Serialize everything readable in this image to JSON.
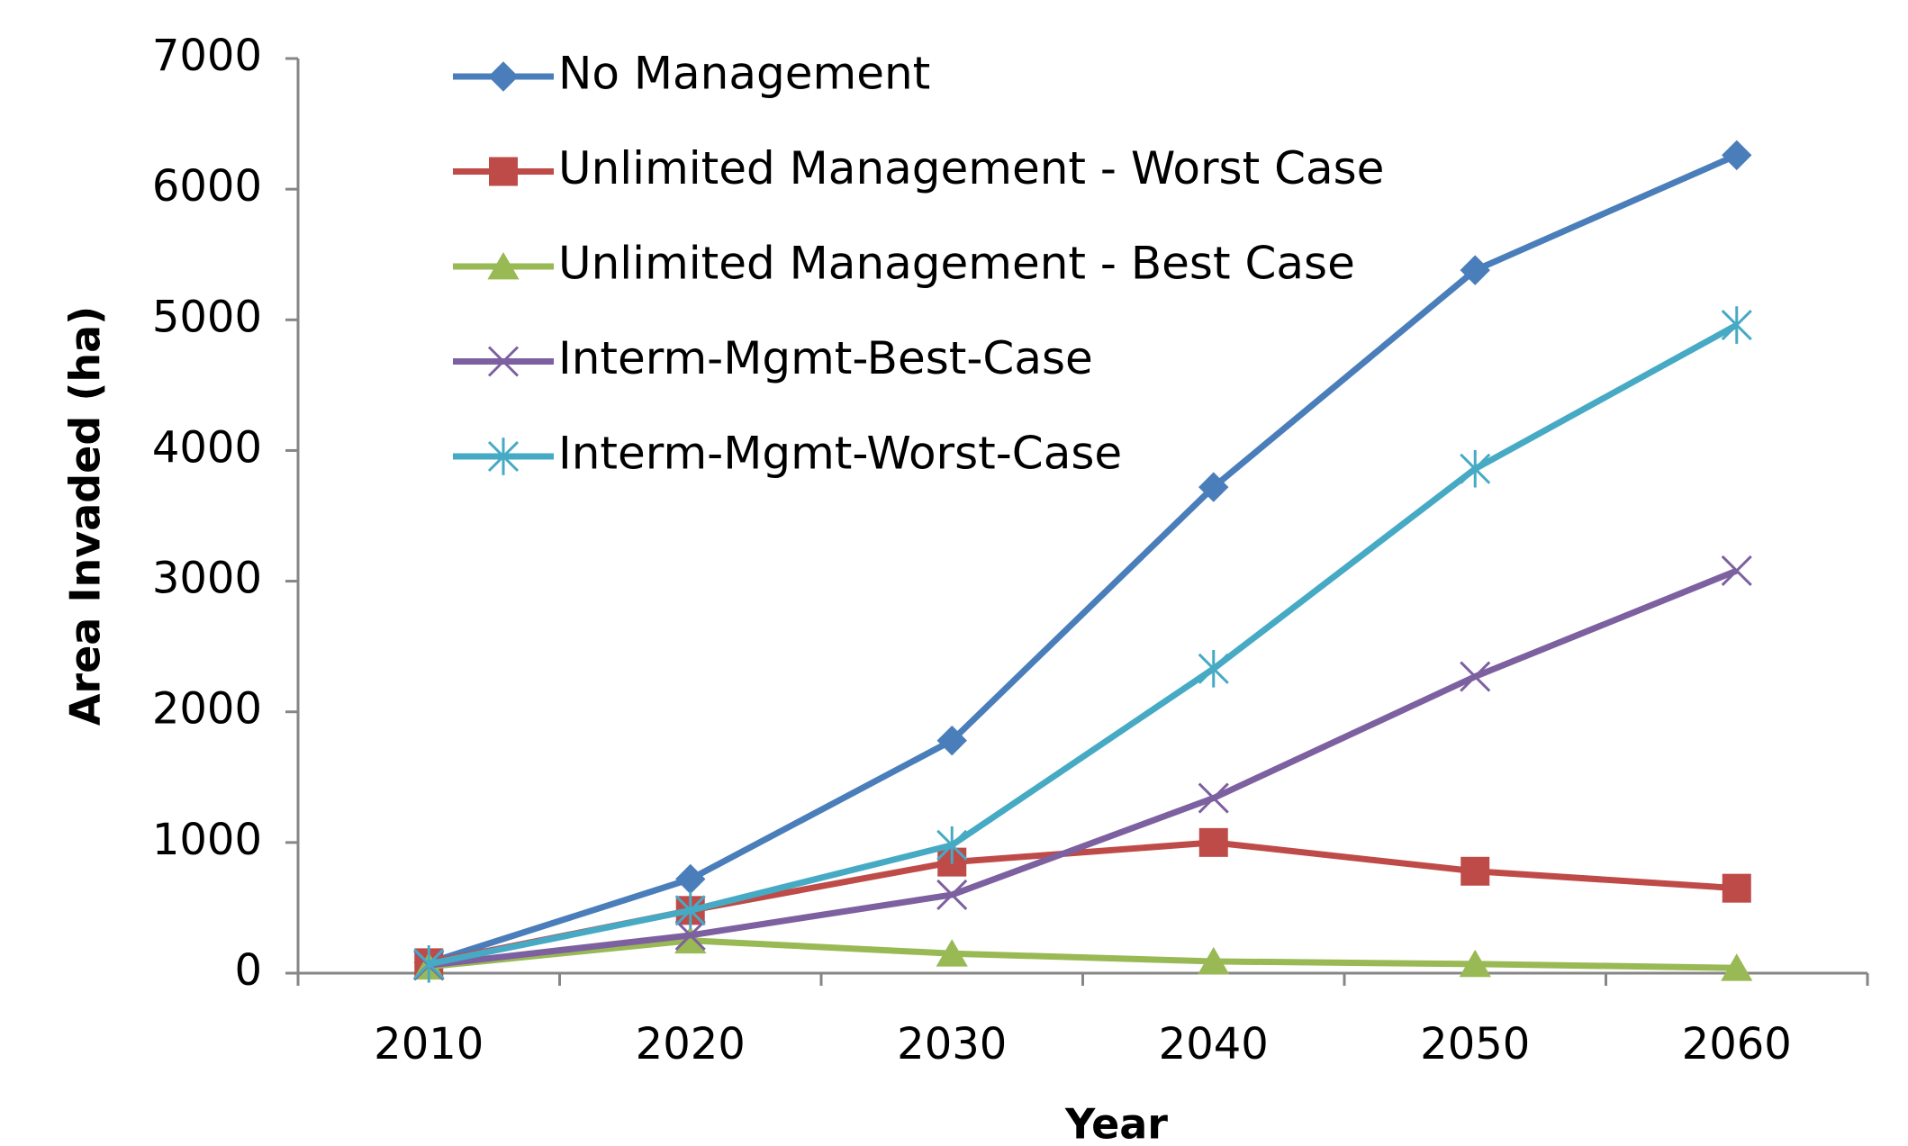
{
  "chart_data": {
    "type": "line",
    "x_label": "Year",
    "y_label": "Area Invaded (ha)",
    "categories": [
      "2010",
      "2020",
      "2030",
      "2040",
      "2050",
      "2060"
    ],
    "series": [
      {
        "name": "No Management",
        "color": "#4a7ebb",
        "marker": "diamond",
        "values": [
          80,
          720,
          1780,
          3720,
          5380,
          6260
        ]
      },
      {
        "name": "Unlimited Management - Worst Case",
        "color": "#be4b48",
        "marker": "square",
        "values": [
          80,
          480,
          850,
          1000,
          780,
          650
        ]
      },
      {
        "name": "Unlimited Management - Best Case",
        "color": "#98b954",
        "marker": "triangle",
        "values": [
          50,
          250,
          150,
          90,
          70,
          40
        ]
      },
      {
        "name": "Interm-Mgmt-Best-Case",
        "color": "#7d60a0",
        "marker": "x",
        "values": [
          60,
          290,
          600,
          1340,
          2270,
          3080
        ]
      },
      {
        "name": "Interm-Mgmt-Worst-Case",
        "color": "#46aac5",
        "marker": "star",
        "values": [
          70,
          480,
          980,
          2330,
          3860,
          4960
        ]
      }
    ],
    "ylim": [
      0,
      7000
    ],
    "yticks": [
      0,
      1000,
      2000,
      3000,
      4000,
      5000,
      6000,
      7000
    ],
    "legend": "upper left"
  }
}
